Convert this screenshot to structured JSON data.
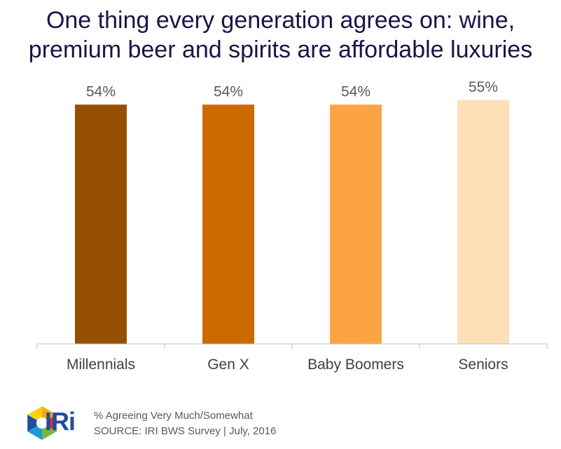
{
  "title": {
    "line1": "One thing every generation agrees on: wine,",
    "line2": "premium beer and spirits are affordable luxuries"
  },
  "chart_data": {
    "type": "bar",
    "title": "One thing every generation agrees on: wine, premium beer and spirits are affordable luxuries",
    "categories": [
      "Millennials",
      "Gen X",
      "Baby Boomers",
      "Seniors"
    ],
    "values": [
      54,
      54,
      54,
      55
    ],
    "value_labels": [
      "54%",
      "54%",
      "54%",
      "55%"
    ],
    "colors": [
      "#954f00",
      "#cc6a00",
      "#fca443",
      "#fedfb8"
    ],
    "xlabel": "",
    "ylabel": "% Agreeing Very Much/Somewhat",
    "ylim": [
      0,
      55
    ],
    "grid": false,
    "legend": "none"
  },
  "footer": {
    "note": "% Agreeing Very Much/Somewhat",
    "source": "SOURCE: IRI BWS Survey | July, 2016"
  },
  "brand": {
    "name": "IRi",
    "color": "#1f4e9c"
  }
}
